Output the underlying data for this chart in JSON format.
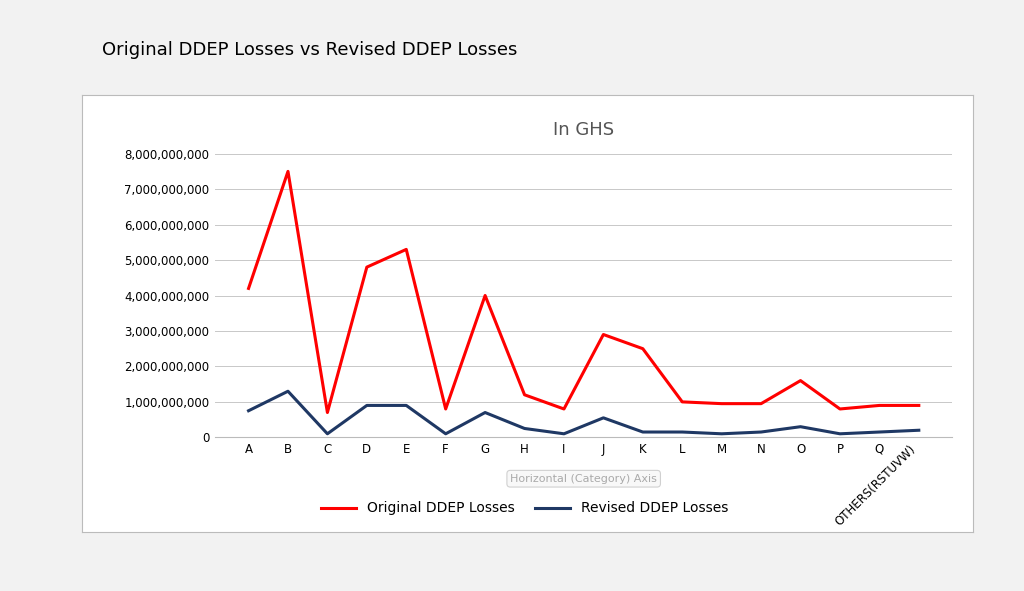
{
  "title": "Original DDEP Losses vs Revised DDEP Losses",
  "subtitle": "In GHS",
  "xlabel": "Horizontal (Category) Axis",
  "categories": [
    "A",
    "B",
    "C",
    "D",
    "E",
    "F",
    "G",
    "H",
    "I",
    "J",
    "K",
    "L",
    "M",
    "N",
    "O",
    "P",
    "Q",
    "OTHERS(RSTUVW)"
  ],
  "original_ddep": [
    4200000000,
    7500000000,
    700000000,
    4800000000,
    5300000000,
    800000000,
    4000000000,
    1200000000,
    800000000,
    2900000000,
    2500000000,
    1000000000,
    950000000,
    950000000,
    1600000000,
    800000000,
    900000000,
    900000000
  ],
  "revised_ddep": [
    750000000,
    1300000000,
    100000000,
    900000000,
    900000000,
    100000000,
    700000000,
    250000000,
    100000000,
    550000000,
    150000000,
    150000000,
    100000000,
    150000000,
    300000000,
    100000000,
    150000000,
    200000000
  ],
  "original_color": "#FF0000",
  "revised_color": "#1F3864",
  "legend_original": "Original DDEP Losses",
  "legend_revised": "Revised DDEP Losses",
  "ylim": [
    0,
    8000000000
  ],
  "ytick_step": 1000000000,
  "fig_background_color": "#F2F2F2",
  "chart_box_color": "#FFFFFF",
  "grid_color": "#C8C8C8",
  "title_fontsize": 13,
  "subtitle_fontsize": 13,
  "tick_fontsize": 8.5,
  "legend_fontsize": 10,
  "line_width": 2.2
}
